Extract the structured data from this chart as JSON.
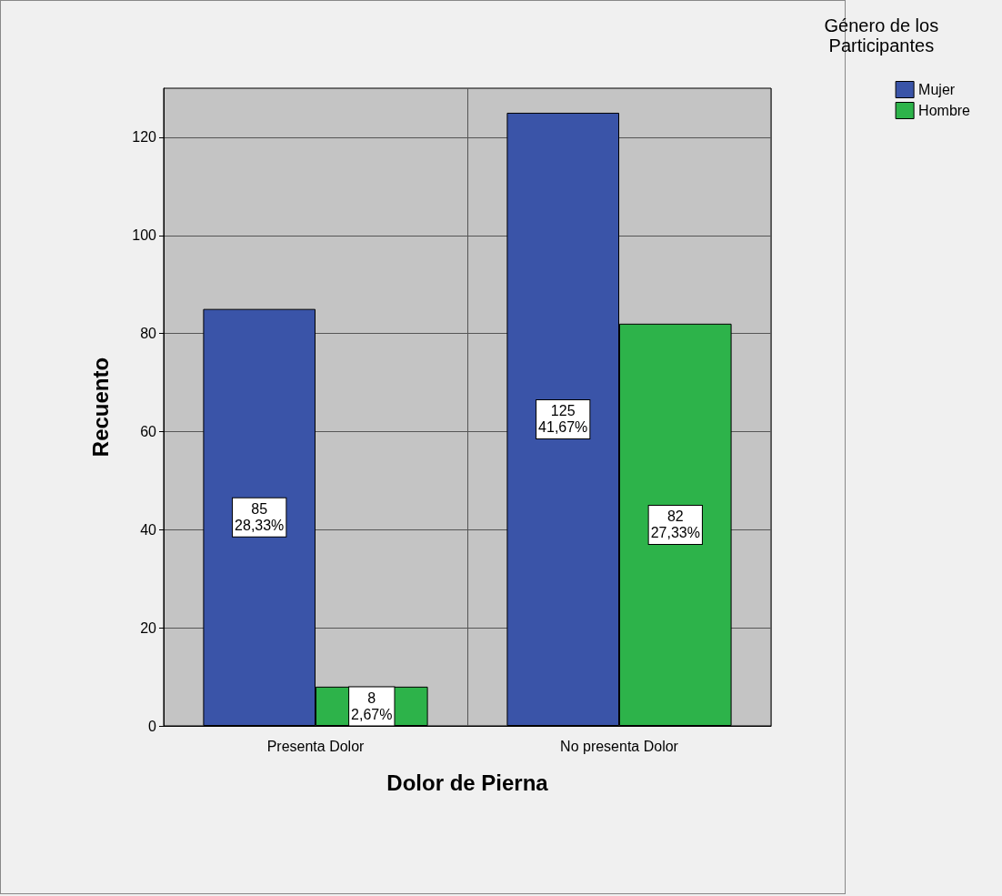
{
  "chart_data": {
    "type": "bar",
    "xlabel": "Dolor de Pierna",
    "ylabel": "Recuento",
    "legend_title": "Género de los\nParticipantes",
    "categories": [
      "Presenta Dolor",
      "No presenta Dolor"
    ],
    "series": [
      {
        "name": "Mujer",
        "color": "#3a54a8",
        "values": [
          85,
          125
        ],
        "value_labels": [
          "85\n28,33%",
          "125\n41,67%"
        ]
      },
      {
        "name": "Hombre",
        "color": "#2db34a",
        "values": [
          8,
          82
        ],
        "value_labels": [
          "8\n2,67%",
          "82\n27,33%"
        ]
      }
    ],
    "ylim": [
      0,
      130
    ],
    "yticks": [
      0,
      20,
      40,
      60,
      80,
      100,
      120
    ],
    "grid": "y",
    "legend": "top right"
  }
}
